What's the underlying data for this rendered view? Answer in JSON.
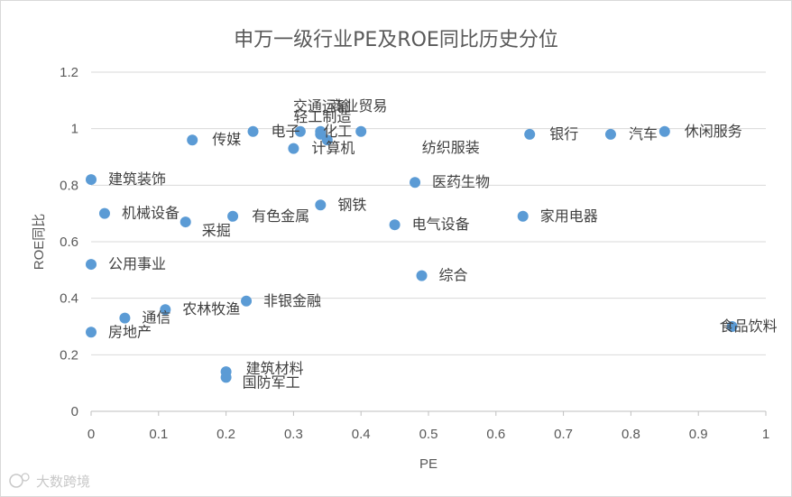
{
  "chart_data": {
    "type": "scatter",
    "title": "申万一级行业PE及ROE同比历史分位",
    "xlabel": "PE",
    "ylabel": "ROE同比",
    "xlim": [
      0,
      1
    ],
    "ylim": [
      0,
      1.2
    ],
    "x_ticks": [
      "0",
      "0.1",
      "0.2",
      "0.3",
      "0.4",
      "0.5",
      "0.6",
      "0.7",
      "0.8",
      "0.9",
      "1"
    ],
    "y_ticks": [
      "0",
      "0.2",
      "0.4",
      "0.6",
      "0.8",
      "1",
      "1.2"
    ],
    "grid": "horizontal",
    "color": "#5B9BD5",
    "points": [
      {
        "label": "交通运输",
        "x": 0.31,
        "y": 0.99
      },
      {
        "label": "商业贸易",
        "x": 0.34,
        "y": 0.99
      },
      {
        "label": "轻工制造",
        "x": 0.34,
        "y": 0.98
      },
      {
        "label": "电子",
        "x": 0.24,
        "y": 0.99
      },
      {
        "label": "化工",
        "x": 0.4,
        "y": 0.99
      },
      {
        "label": "计算机",
        "x": 0.3,
        "y": 0.93
      },
      {
        "label": "传媒",
        "x": 0.15,
        "y": 0.96
      },
      {
        "label": "纺织服装",
        "x": 0.35,
        "y": 0.96
      },
      {
        "label": "银行",
        "x": 0.65,
        "y": 0.98
      },
      {
        "label": "汽车",
        "x": 0.77,
        "y": 0.98
      },
      {
        "label": "休闲服务",
        "x": 0.85,
        "y": 0.99
      },
      {
        "label": "建筑装饰",
        "x": 0.0,
        "y": 0.82
      },
      {
        "label": "医药生物",
        "x": 0.48,
        "y": 0.81
      },
      {
        "label": "机械设备",
        "x": 0.02,
        "y": 0.7
      },
      {
        "label": "采掘",
        "x": 0.14,
        "y": 0.67
      },
      {
        "label": "有色金属",
        "x": 0.21,
        "y": 0.69
      },
      {
        "label": "钢铁",
        "x": 0.34,
        "y": 0.73
      },
      {
        "label": "电气设备",
        "x": 0.45,
        "y": 0.66
      },
      {
        "label": "家用电器",
        "x": 0.64,
        "y": 0.69
      },
      {
        "label": "公用事业",
        "x": 0.0,
        "y": 0.52
      },
      {
        "label": "综合",
        "x": 0.49,
        "y": 0.48
      },
      {
        "label": "非银金融",
        "x": 0.23,
        "y": 0.39
      },
      {
        "label": "农林牧渔",
        "x": 0.11,
        "y": 0.36
      },
      {
        "label": "通信",
        "x": 0.05,
        "y": 0.33
      },
      {
        "label": "房地产",
        "x": 0.0,
        "y": 0.28
      },
      {
        "label": "食品饮料",
        "x": 0.95,
        "y": 0.3
      },
      {
        "label": "建筑材料",
        "x": 0.2,
        "y": 0.14
      },
      {
        "label": "国防军工",
        "x": 0.2,
        "y": 0.12
      }
    ]
  },
  "watermark": "大数跨境"
}
